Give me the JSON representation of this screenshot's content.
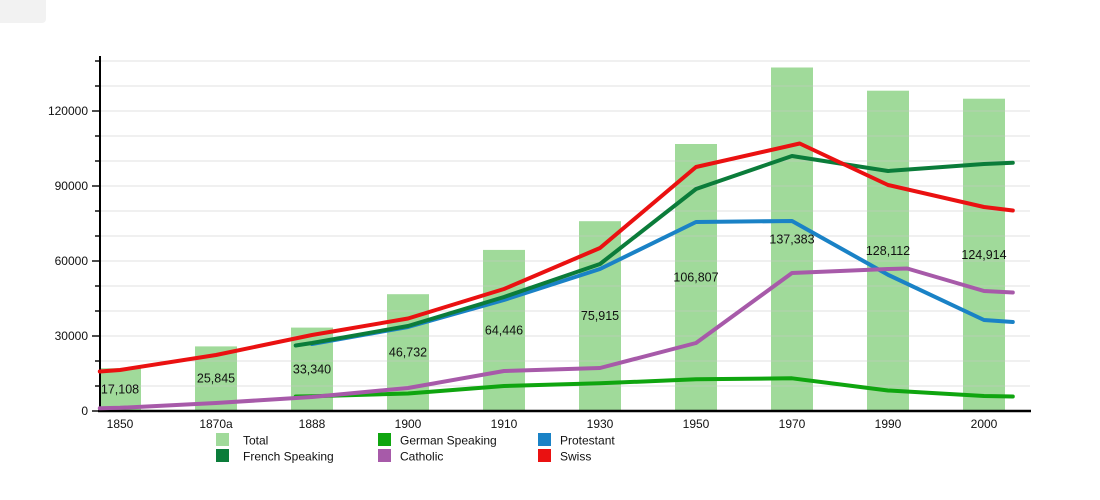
{
  "chart_data": {
    "type": "composite-bar-line",
    "title": "",
    "categories": [
      "1850",
      "1870a",
      "1888",
      "1900",
      "1910",
      "1930",
      "1950",
      "1970",
      "1990",
      "2000"
    ],
    "y_axis": {
      "ticks": [
        "0",
        "30000",
        "60000",
        "90000",
        "120000"
      ],
      "tick_values": [
        0,
        30000,
        60000,
        90000,
        120000
      ],
      "minor_step": 10000,
      "ylim": [
        0,
        140000
      ],
      "grid": true
    },
    "bars": {
      "id": "total",
      "name": "Total",
      "color": "#a0da9a",
      "values": [
        17108,
        25845,
        33340,
        46732,
        64446,
        75915,
        106807,
        137383,
        128112,
        124914
      ],
      "labels": [
        "17,108",
        "25,845",
        "33,340",
        "46,732",
        "64,446",
        "75,915",
        "106,807",
        "137,383",
        "128,112",
        "124,914"
      ]
    },
    "series": [
      {
        "id": "german-speaking",
        "name": "German Speaking",
        "color": "#0fa50f",
        "points": [
          [
            1.83,
            5800
          ],
          [
            2,
            5900
          ],
          [
            3,
            7000
          ],
          [
            4,
            10000
          ],
          [
            5,
            11100
          ],
          [
            6,
            12700
          ],
          [
            7,
            13100
          ],
          [
            8,
            8200
          ],
          [
            9,
            6000
          ],
          [
            9.3,
            5800
          ]
        ]
      },
      {
        "id": "protestant",
        "name": "Protestant",
        "color": "#1a82c6",
        "points": [
          [
            2,
            26800
          ],
          [
            3,
            33600
          ],
          [
            4,
            44400
          ],
          [
            5,
            56800
          ],
          [
            6,
            75600
          ],
          [
            7,
            76000
          ],
          [
            8,
            54500
          ],
          [
            9,
            36400
          ],
          [
            9.3,
            35600
          ]
        ]
      },
      {
        "id": "french-speaking",
        "name": "French Speaking",
        "color": "#0b7c3a",
        "points": [
          [
            1.83,
            26200
          ],
          [
            2,
            27200
          ],
          [
            3,
            34000
          ],
          [
            4,
            45600
          ],
          [
            5,
            58800
          ],
          [
            6,
            88800
          ],
          [
            7,
            102000
          ],
          [
            8,
            96000
          ],
          [
            9,
            98800
          ],
          [
            9.3,
            99300
          ]
        ]
      },
      {
        "id": "catholic",
        "name": "Catholic",
        "color": "#a75aa9",
        "points": [
          [
            -0.21,
            1100
          ],
          [
            0,
            1300
          ],
          [
            1,
            3200
          ],
          [
            2,
            5600
          ],
          [
            3,
            9200
          ],
          [
            4,
            16000
          ],
          [
            5,
            17200
          ],
          [
            6,
            27200
          ],
          [
            7,
            55200
          ],
          [
            8,
            56800
          ],
          [
            8.2,
            57000
          ],
          [
            9,
            48000
          ],
          [
            9.3,
            47400
          ]
        ]
      },
      {
        "id": "swiss",
        "name": "Swiss",
        "color": "#ea1111",
        "points": [
          [
            -0.21,
            15800
          ],
          [
            0,
            16400
          ],
          [
            1,
            22400
          ],
          [
            2,
            30400
          ],
          [
            3,
            37000
          ],
          [
            4,
            48800
          ],
          [
            5,
            65200
          ],
          [
            6,
            97600
          ],
          [
            7.08,
            107000
          ],
          [
            8,
            90400
          ],
          [
            9,
            81600
          ],
          [
            9.3,
            80200
          ]
        ]
      }
    ],
    "legend": {
      "position": "bottom",
      "items": [
        {
          "id": "total",
          "label": "Total",
          "color": "#a0da9a"
        },
        {
          "id": "german-speaking",
          "label": "German Speaking",
          "color": "#0fa50f"
        },
        {
          "id": "protestant",
          "label": "Protestant",
          "color": "#1a82c6"
        },
        {
          "id": "french-speaking",
          "label": "French Speaking",
          "color": "#0b7c3a"
        },
        {
          "id": "catholic",
          "label": "Catholic",
          "color": "#a75aa9"
        },
        {
          "id": "swiss",
          "label": "Swiss",
          "color": "#ea1111"
        }
      ]
    }
  }
}
